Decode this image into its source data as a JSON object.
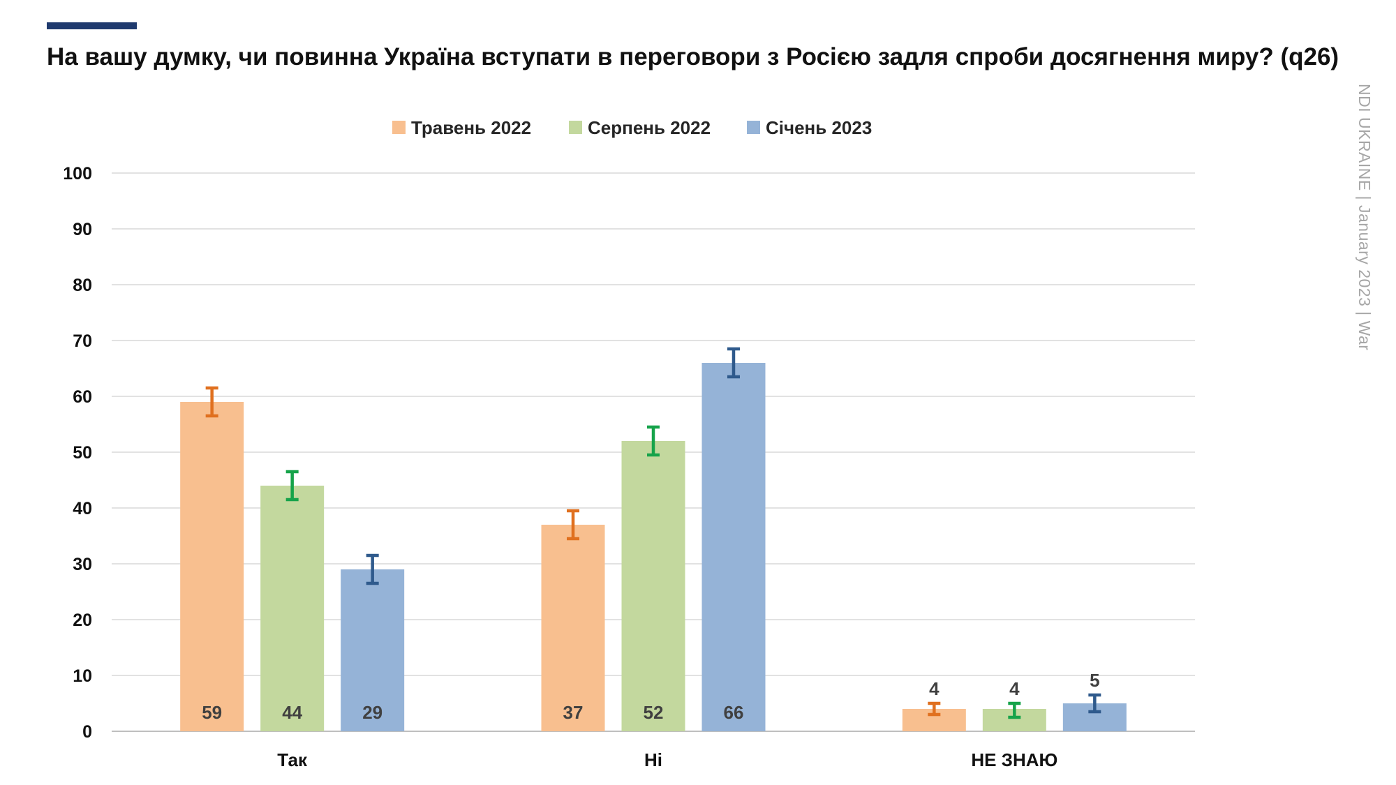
{
  "header": {
    "title": "На вашу думку, чи повинна Україна вступати в переговори з Росією задля спроби досягнення миру? (q26)",
    "side_note": "NDI UKRAINE | January 2023 | War",
    "accent_color": "#1f3a6e"
  },
  "chart_data": {
    "type": "bar",
    "title": "На вашу думку, чи повинна Україна вступати в переговори з Росією задля спроби досягнення миру? (q26)",
    "categories": [
      "Так",
      "Ні",
      "НЕ ЗНАЮ"
    ],
    "series": [
      {
        "name": "Травень 2022",
        "values": [
          59,
          37,
          4
        ],
        "error_low": [
          56.5,
          34.5,
          3
        ],
        "error_high": [
          61.5,
          39.5,
          5
        ],
        "color": "#f8bf8f",
        "error_color": "#e0701f"
      },
      {
        "name": "Серпень 2022",
        "values": [
          44,
          52,
          4
        ],
        "error_low": [
          41.5,
          49.5,
          2.5
        ],
        "error_high": [
          46.5,
          54.5,
          5
        ],
        "color": "#c3d89e",
        "error_color": "#16a34a"
      },
      {
        "name": "Січень 2023",
        "values": [
          29,
          66,
          5
        ],
        "error_low": [
          26.5,
          63.5,
          3.5
        ],
        "error_high": [
          31.5,
          68.5,
          6.5
        ],
        "color": "#95b3d7",
        "error_color": "#2f5a8c"
      }
    ],
    "y_ticks": [
      "0",
      "10",
      "20",
      "30",
      "40",
      "50",
      "60",
      "70",
      "80",
      "90",
      "100"
    ],
    "ylim": [
      0,
      100
    ],
    "grid": true,
    "legend_position": "top-center",
    "xlabel": "",
    "ylabel": ""
  }
}
